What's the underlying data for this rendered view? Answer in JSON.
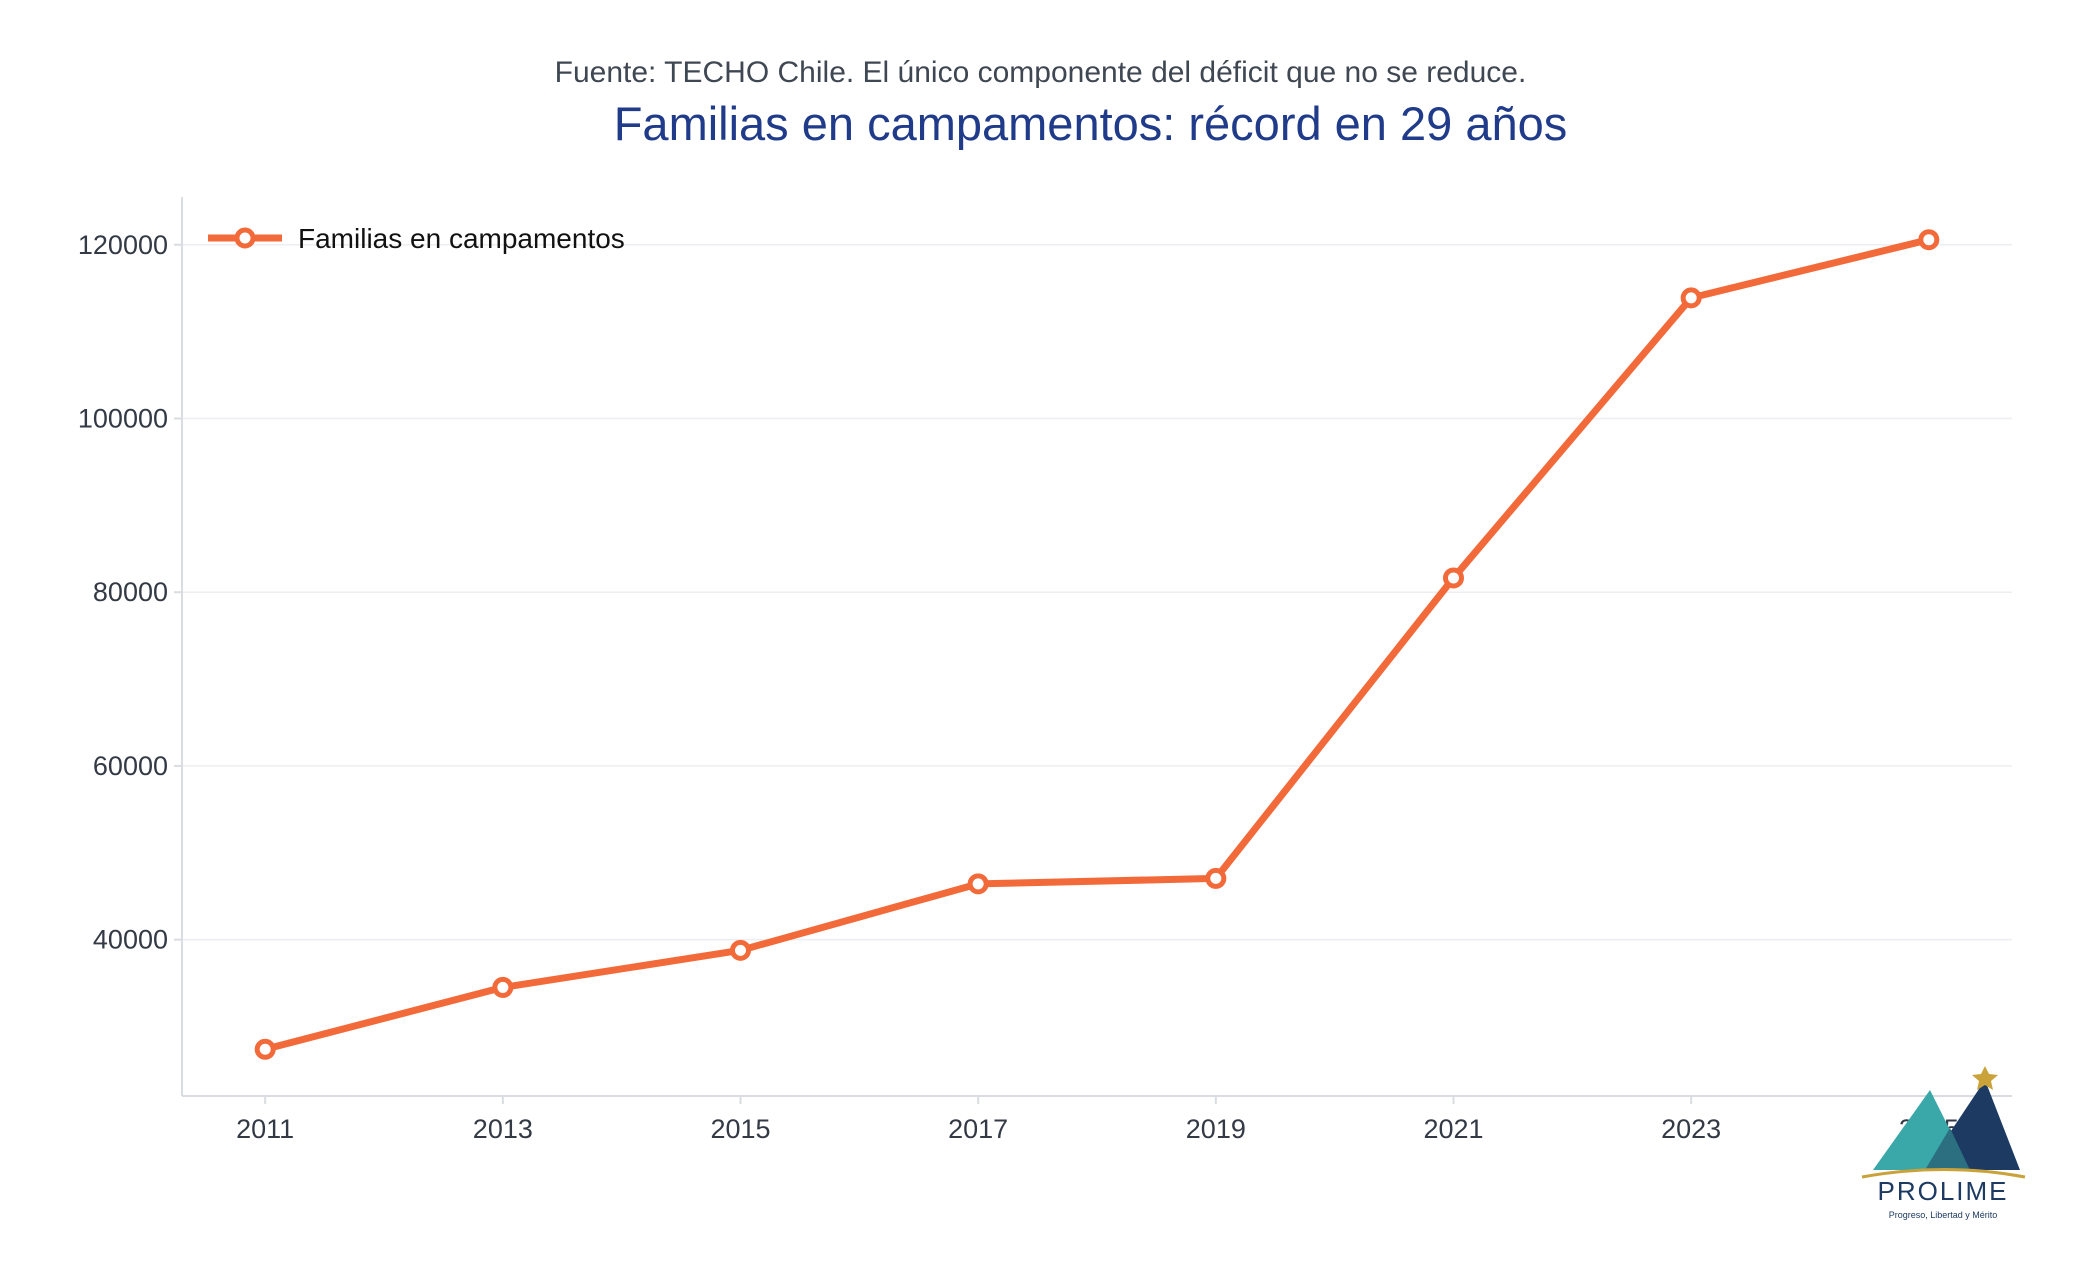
{
  "header": {
    "subtitle": "Fuente: TECHO Chile. El único componente del déficit que no se reduce.",
    "title": "Familias en campamentos: récord en 29 años"
  },
  "chart_data": {
    "type": "line",
    "title": "Familias en campamentos: récord en 29 años",
    "subtitle": "Fuente: TECHO Chile. El único componente del déficit que no se reduce.",
    "xlabel": "",
    "ylabel": "",
    "x": [
      2011,
      2013,
      2015,
      2017,
      2019,
      2021,
      2023,
      2025
    ],
    "series": [
      {
        "name": "Familias en campamentos",
        "values": [
          27378,
          34500,
          38770,
          46423,
          47050,
          81643,
          113887,
          120584
        ],
        "color": "#f26a3a"
      }
    ],
    "xlim": [
      2010.3,
      2025.7
    ],
    "ylim": [
      22000,
      125500
    ],
    "xticks": [
      2011,
      2013,
      2015,
      2017,
      2019,
      2021,
      2023,
      2025
    ],
    "xtick_labels": [
      "2011",
      "2013",
      "2015",
      "2017",
      "2019",
      "2021",
      "2023",
      "2025"
    ],
    "yticks": [
      40000,
      60000,
      80000,
      100000,
      120000
    ],
    "ytick_labels": [
      "40000",
      "60000",
      "80000",
      "100000",
      "120000"
    ],
    "grid": "horizontal",
    "legend_position": "top-left"
  },
  "logo": {
    "name": "PROLIME",
    "tagline": "Progreso, Libertad y Mérito",
    "colors": {
      "teal": "#3aa7a8",
      "navy": "#1d3a63",
      "gold": "#c9a23a"
    }
  }
}
